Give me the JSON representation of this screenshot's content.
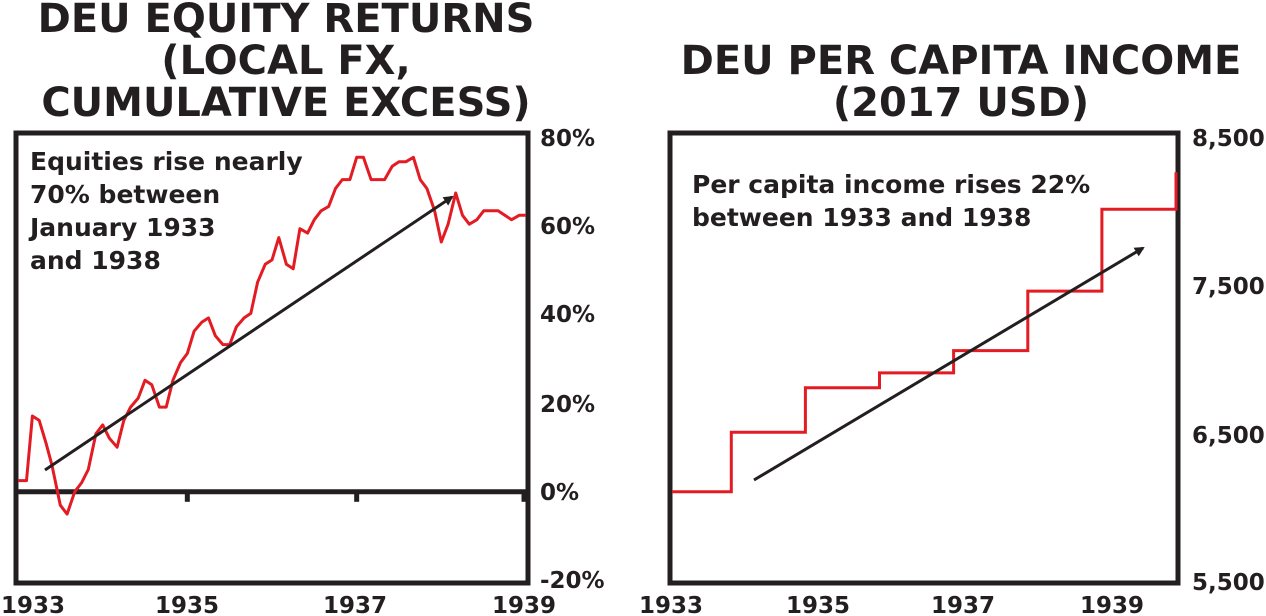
{
  "chart_data": [
    {
      "type": "line",
      "title_lines": [
        "DEU EQUITY RETURNS",
        "(LOCAL FX,",
        "CUMULATIVE EXCESS)"
      ],
      "x_tick_labels": [
        "1933",
        "1935",
        "1937",
        "1939"
      ],
      "y_tick_labels": [
        "80%",
        "60%",
        "40%",
        "20%",
        "0%",
        "-20%"
      ],
      "ylim": [
        -20,
        80
      ],
      "xlim": [
        1933.0,
        1939.0
      ],
      "annotation_lines": [
        "Equities rise nearly",
        "70% between",
        "January 1933",
        "and 1938"
      ],
      "series_color": "#e31b23",
      "arrow_color": "#231f20",
      "x": [
        1933.0,
        1933.1,
        1933.17,
        1933.25,
        1933.33,
        1933.4,
        1933.5,
        1933.58,
        1933.67,
        1933.75,
        1933.83,
        1933.92,
        1934.0,
        1934.08,
        1934.17,
        1934.25,
        1934.33,
        1934.42,
        1934.5,
        1934.58,
        1934.67,
        1934.75,
        1934.83,
        1934.92,
        1935.0,
        1935.08,
        1935.17,
        1935.25,
        1935.33,
        1935.42,
        1935.5,
        1935.58,
        1935.67,
        1935.75,
        1935.83,
        1935.92,
        1936.0,
        1936.08,
        1936.17,
        1936.25,
        1936.33,
        1936.42,
        1936.5,
        1936.58,
        1936.67,
        1936.75,
        1936.83,
        1936.92,
        1937.0,
        1937.08,
        1937.17,
        1937.25,
        1937.33,
        1937.42,
        1937.5,
        1937.58,
        1937.67,
        1937.75,
        1937.83,
        1937.92,
        1938.0,
        1938.08,
        1938.17,
        1938.25,
        1938.33,
        1938.42,
        1938.5,
        1938.58,
        1938.67,
        1938.75,
        1938.83,
        1938.92,
        1939.0
      ],
      "y": [
        2.5,
        2.5,
        17,
        16,
        11,
        6,
        -3,
        -5,
        0,
        2,
        5,
        13,
        15,
        12,
        10,
        16,
        19,
        21,
        25,
        24,
        19,
        19,
        25,
        29,
        31,
        36,
        38,
        39,
        35,
        33,
        33,
        37,
        39,
        40,
        47,
        51,
        52,
        57,
        51,
        50,
        59,
        58,
        61,
        63,
        64,
        68,
        70,
        70,
        75,
        75,
        70,
        70,
        70,
        73,
        74,
        74,
        75,
        70,
        68,
        63,
        56,
        60,
        67,
        62,
        60,
        61,
        63,
        63,
        63,
        62,
        61,
        62,
        62
      ]
    },
    {
      "type": "line",
      "title_lines": [
        "DEU PER CAPITA INCOME",
        "(2017 USD)"
      ],
      "x_tick_labels": [
        "1933",
        "1935",
        "1937",
        "1939"
      ],
      "y_tick_labels": [
        "8,500",
        "7,500",
        "6,500",
        "5,500"
      ],
      "ylim": [
        5500,
        8500
      ],
      "xlim": [
        1933.0,
        1939.8
      ],
      "annotation_lines": [
        "Per capita income rises 22%",
        "between 1933 and 1938"
      ],
      "series_color": "#e31b23",
      "arrow_color": "#231f20",
      "x": [
        1933.0,
        1933.8,
        1933.8,
        1934.8,
        1934.8,
        1935.8,
        1935.8,
        1936.8,
        1936.8,
        1937.8,
        1937.8,
        1938.8,
        1938.8,
        1939.8,
        1939.8,
        1939.9
      ],
      "y": [
        6100,
        6100,
        6500,
        6500,
        6800,
        6800,
        6900,
        6900,
        7050,
        7050,
        7450,
        7450,
        8000,
        8000,
        8250,
        8250
      ]
    }
  ]
}
